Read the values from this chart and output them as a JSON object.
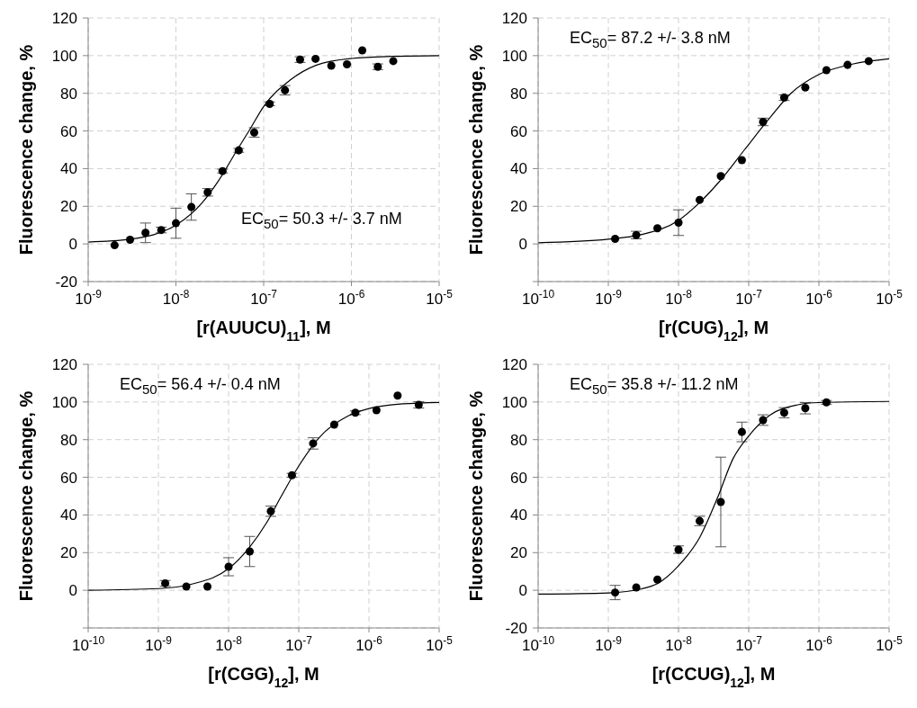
{
  "chart_data": [
    {
      "type": "scatter",
      "xlabel": "[r(AUUCU)$_{11}$], M",
      "ylabel": "Fluorescence change, %",
      "annotations": [
        "EC$_{50}$= 50.3 +/- 3.7 nM"
      ],
      "log": "x",
      "grid": true,
      "xlim": [
        1e-09,
        1e-05
      ],
      "xticks": [
        {
          "value": 1e-09,
          "label": "10$^{-9}$"
        },
        {
          "value": 1e-08,
          "label": "10$^{-8}$"
        },
        {
          "value": 1e-07,
          "label": "10$^{-7}$"
        },
        {
          "value": 1e-06,
          "label": "10$^{-6}$"
        },
        {
          "value": 1e-05,
          "label": "10$^{-5}$"
        }
      ],
      "ylim": [
        -20,
        120
      ],
      "yticks": [
        -20,
        0,
        20,
        40,
        60,
        80,
        100,
        120
      ],
      "series": [
        {
          "color": "#000000",
          "marker": "circle",
          "x": [
            2e-09,
            3e-09,
            4.5e-09,
            6.8e-09,
            1e-08,
            1.5e-08,
            2.3e-08,
            3.4e-08,
            5.2e-08,
            7.8e-08,
            1.17e-07,
            1.75e-07,
            2.6e-07,
            3.9e-07,
            5.9e-07,
            8.9e-07,
            1.33e-06,
            2e-06,
            3e-06
          ],
          "values": [
            -0.7,
            2.2,
            5.9,
            7.4,
            11,
            19.6,
            27.4,
            38.7,
            49.7,
            59.2,
            74.4,
            81.6,
            97.9,
            98.3,
            94.7,
            95.4,
            102.8,
            94.1,
            97.1
          ],
          "errors": [
            null,
            null,
            5.2,
            1.5,
            8,
            7,
            2,
            1,
            1,
            2.5,
            1,
            2.5,
            1.5,
            null,
            null,
            null,
            null,
            1.5,
            null
          ]
        },
        {
          "type": "line",
          "color": "#000000",
          "marker": "none",
          "x": [
            1e-09,
            3e-09,
            1e-08,
            2e-08,
            3e-08,
            5e-08,
            7e-08,
            1e-07,
            2e-07,
            4e-07,
            1e-06,
            3e-06,
            1e-05
          ],
          "values": [
            1,
            2.5,
            10,
            22,
            33,
            50,
            61,
            73,
            87,
            95,
            98.5,
            99.6,
            100
          ]
        }
      ]
    },
    {
      "type": "scatter",
      "xlabel": "[r(CUG)$_{12}$], M",
      "ylabel": "Fluorescence change, %",
      "annotations": [
        "EC$_{50}$= 87.2 +/- 3.8 nM"
      ],
      "log": "x",
      "grid": true,
      "xlim": [
        1e-10,
        1e-05
      ],
      "xticks": [
        {
          "value": 1e-10,
          "label": "10$^{-10}$"
        },
        {
          "value": 1e-09,
          "label": "10$^{-9}$"
        },
        {
          "value": 1e-08,
          "label": "10$^{-8}$"
        },
        {
          "value": 1e-07,
          "label": "10$^{-7}$"
        },
        {
          "value": 1e-06,
          "label": "10$^{-6}$"
        },
        {
          "value": 1e-05,
          "label": "10$^{-5}$"
        }
      ],
      "ylim": [
        -20,
        120
      ],
      "yticks": [
        {
          "value": -20,
          "label": null
        },
        0,
        20,
        40,
        60,
        80,
        100,
        120
      ],
      "series": [
        {
          "color": "#000000",
          "marker": "circle",
          "x": [
            1.25e-09,
            2.5e-09,
            5e-09,
            1e-08,
            2e-08,
            4e-08,
            8e-08,
            1.6e-07,
            3.2e-07,
            6.4e-07,
            1.28e-06,
            2.56e-06,
            5.12e-06
          ],
          "values": [
            2.7,
            4.7,
            8.3,
            11.3,
            23.4,
            36,
            44.5,
            64.8,
            77.7,
            83.1,
            92.3,
            95.1,
            97.1
          ],
          "errors": [
            null,
            2,
            null,
            6.8,
            null,
            null,
            null,
            2,
            1.5,
            null,
            null,
            null,
            null
          ]
        },
        {
          "type": "line",
          "color": "#000000",
          "marker": "none",
          "x": [
            1e-10,
            1e-09,
            3e-09,
            1e-08,
            2e-08,
            4e-08,
            8.7e-08,
            2e-07,
            4e-07,
            1e-06,
            3e-06,
            1e-05
          ],
          "values": [
            0.6,
            2.5,
            5,
            12.5,
            22,
            34,
            50,
            67,
            80,
            90,
            95.5,
            98.3
          ]
        }
      ]
    },
    {
      "type": "scatter",
      "xlabel": "[r(CGG)$_{12}$], M",
      "ylabel": "Fluorescence change, %",
      "annotations": [
        "EC$_{50}$= 56.4 +/- 0.4 nM"
      ],
      "log": "x",
      "grid": true,
      "xlim": [
        1e-10,
        1e-05
      ],
      "xticks": [
        {
          "value": 1e-10,
          "label": "10$^{-10}$"
        },
        {
          "value": 1e-09,
          "label": "10$^{-9}$"
        },
        {
          "value": 1e-08,
          "label": "10$^{-8}$"
        },
        {
          "value": 1e-07,
          "label": "10$^{-7}$"
        },
        {
          "value": 1e-06,
          "label": "10$^{-6}$"
        },
        {
          "value": 1e-05,
          "label": "10$^{-5}$"
        }
      ],
      "ylim": [
        -20,
        120
      ],
      "yticks": [
        {
          "value": -20,
          "label": null
        },
        0,
        20,
        40,
        60,
        80,
        100,
        120
      ],
      "series": [
        {
          "color": "#000000",
          "marker": "circle",
          "x": [
            1.25e-09,
            2.5e-09,
            5e-09,
            1e-08,
            2e-08,
            4e-08,
            8e-08,
            1.6e-07,
            3.2e-07,
            6.4e-07,
            1.28e-06,
            2.56e-06,
            5.12e-06
          ],
          "values": [
            3.7,
            2,
            2,
            12.5,
            20.6,
            42,
            61.1,
            78,
            88,
            94.3,
            95.6,
            103.4,
            98.5
          ],
          "errors": [
            1.5,
            null,
            null,
            4.8,
            8,
            2.7,
            1,
            3,
            null,
            1,
            null,
            null,
            1.7
          ]
        },
        {
          "type": "line",
          "color": "#000000",
          "marker": "none",
          "x": [
            1e-10,
            1e-09,
            3e-09,
            1e-08,
            2e-08,
            3.5e-08,
            5.64e-08,
            1e-07,
            2e-07,
            5e-07,
            1e-06,
            3e-06,
            1e-05
          ],
          "values": [
            0,
            0.9,
            3.3,
            11.5,
            23,
            36,
            50,
            66,
            81.5,
            92.5,
            96.5,
            99,
            99.8
          ]
        }
      ]
    },
    {
      "type": "scatter",
      "xlabel": "[r(CCUG)$_{12}$], M",
      "ylabel": "Fluorescence change, %",
      "annotations": [
        "EC$_{50}$= 35.8 +/- 11.2 nM"
      ],
      "log": "x",
      "grid": true,
      "xlim": [
        1e-10,
        1e-05
      ],
      "xticks": [
        {
          "value": 1e-10,
          "label": "10$^{-10}$"
        },
        {
          "value": 1e-09,
          "label": "10$^{-9}$"
        },
        {
          "value": 1e-08,
          "label": "10$^{-8}$"
        },
        {
          "value": 1e-07,
          "label": "10$^{-7}$"
        },
        {
          "value": 1e-06,
          "label": "10$^{-6}$"
        },
        {
          "value": 1e-05,
          "label": "10$^{-5}$"
        }
      ],
      "ylim": [
        -20,
        120
      ],
      "yticks": [
        -20,
        0,
        20,
        40,
        60,
        80,
        100,
        120
      ],
      "series": [
        {
          "color": "#000000",
          "marker": "circle",
          "x": [
            1.25e-09,
            2.5e-09,
            5e-09,
            1e-08,
            2e-08,
            4e-08,
            8e-08,
            1.6e-07,
            3.2e-07,
            6.4e-07,
            1.28e-06
          ],
          "values": [
            -1.2,
            1.5,
            5.7,
            21.6,
            36.8,
            46.9,
            84.1,
            90.4,
            94.3,
            96.7,
            99.8
          ],
          "errors": [
            3.8,
            null,
            null,
            2,
            2.5,
            23.8,
            5.2,
            2.8,
            2.7,
            3,
            1
          ]
        },
        {
          "type": "line",
          "color": "#000000",
          "marker": "none",
          "x": [
            1e-10,
            1e-09,
            3e-09,
            5e-09,
            1e-08,
            2e-08,
            3.58e-08,
            6e-08,
            1e-07,
            2e-07,
            5e-07,
            1e-06,
            1e-05
          ],
          "values": [
            -2,
            -1.4,
            0.8,
            3.5,
            13,
            28,
            49,
            70,
            82,
            93,
            98.5,
            99.7,
            100.3
          ]
        }
      ]
    }
  ]
}
